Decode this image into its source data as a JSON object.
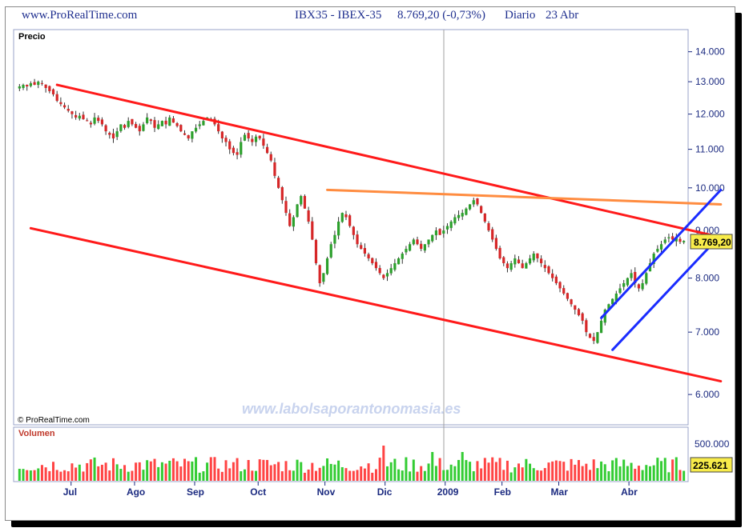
{
  "header": {
    "site": "www.ProRealTime.com",
    "instrument": "IBX35 - IBEX-35",
    "quote": "8.769,20 (-0,73%)",
    "period": "Diario",
    "date": "23 Abr"
  },
  "labels": {
    "price_panel": "Precio",
    "volume_panel": "Volumen",
    "copyright": "© ProRealTime.com",
    "watermark": "www.labolsaporantonomasia.es",
    "last_price": "8.769,20",
    "last_volume": "225.621",
    "volume_tick": "500.000"
  },
  "colors": {
    "candle_up": "#2ca02c",
    "candle_down": "#d62728",
    "channel_red": "#ff1a1a",
    "resistance_orange": "#ff8c40",
    "channel_blue": "#1a2cff",
    "axis_blue": "#1b2a80",
    "vol_up": "#33cc33",
    "vol_down": "#ff4444"
  },
  "chart_data": {
    "type": "candlestick",
    "title": "IBX35 - IBEX-35",
    "y_axis": {
      "scale": "log",
      "ticks": [
        "14.000",
        "13.000",
        "12.000",
        "11.000",
        "10.000",
        "9.000",
        "8.000",
        "7.000",
        "6.000"
      ],
      "tick_values": [
        14000,
        13000,
        12000,
        11000,
        10000,
        9000,
        8000,
        7000,
        6000
      ],
      "ylim": [
        5600,
        14700
      ]
    },
    "x_axis": {
      "ticks": [
        "Jul",
        "Ago",
        "Sep",
        "Oct",
        "Nov",
        "Dic",
        "2009",
        "Feb",
        "Mar",
        "Abr"
      ]
    },
    "price_series": {
      "name": "IBEX-35",
      "points": [
        12850,
        12900,
        12850,
        12950,
        12900,
        13000,
        12950,
        12800,
        12700,
        12600,
        12400,
        12300,
        12200,
        12100,
        12000,
        11900,
        11950,
        11850,
        11800,
        11700,
        11900,
        11800,
        11700,
        11500,
        11400,
        11300,
        11500,
        11700,
        11600,
        11800,
        11700,
        11600,
        11500,
        11700,
        11900,
        11800,
        11600,
        11700,
        11800,
        11700,
        11900,
        11750,
        11650,
        11500,
        11400,
        11300,
        11500,
        11600,
        11700,
        11800,
        11900,
        11850,
        11700,
        11500,
        11300,
        11200,
        11000,
        10900,
        10850,
        11200,
        11400,
        11300,
        11200,
        11350,
        11300,
        11100,
        10900,
        10700,
        10300,
        10000,
        9700,
        9400,
        9100,
        9300,
        9600,
        9800,
        9500,
        9200,
        8800,
        8300,
        7900,
        8100,
        8400,
        8700,
        8900,
        9200,
        9400,
        9300,
        9100,
        8900,
        8700,
        8600,
        8500,
        8400,
        8300,
        8200,
        8100,
        8000,
        8100,
        8200,
        8300,
        8400,
        8500,
        8600,
        8700,
        8800,
        8700,
        8600,
        8700,
        8800,
        8900,
        9000,
        8900,
        9000,
        9100,
        9200,
        9300,
        9350,
        9400,
        9500,
        9600,
        9700,
        9600,
        9400,
        9200,
        9000,
        8800,
        8600,
        8400,
        8300,
        8200,
        8300,
        8400,
        8300,
        8200,
        8300,
        8400,
        8500,
        8400,
        8300,
        8200,
        8100,
        8000,
        7900,
        7800,
        7700,
        7600,
        7500,
        7400,
        7300,
        7200,
        7000,
        6900,
        6850,
        7000,
        7200,
        7400,
        7500,
        7600,
        7700,
        7800,
        7900,
        8000,
        8100,
        7900,
        7800,
        7900,
        8100,
        8300,
        8500,
        8600,
        8700,
        8800,
        8850,
        8800,
        8850,
        8750,
        8770
      ]
    },
    "volume_series": {
      "name": "Volumen",
      "tick": 500000,
      "last": 225621
    },
    "trendlines": [
      {
        "name": "upper-red",
        "color": "#ff1a1a",
        "from": {
          "i": 10,
          "price": 12900
        },
        "to": {
          "i": 186,
          "price": 8850
        }
      },
      {
        "name": "lower-red",
        "color": "#ff1a1a",
        "from": {
          "i": 3,
          "price": 9050
        },
        "to": {
          "i": 186,
          "price": 6200
        }
      },
      {
        "name": "orange-resistance",
        "color": "#ff8c40",
        "from": {
          "i": 82,
          "price": 9950
        },
        "to": {
          "i": 186,
          "price": 9600
        }
      },
      {
        "name": "blue-upper",
        "color": "#1a2cff",
        "from": {
          "i": 155,
          "price": 7250
        },
        "to": {
          "i": 186,
          "price": 9950
        }
      },
      {
        "name": "blue-lower",
        "color": "#1a2cff",
        "from": {
          "i": 158,
          "price": 6700
        },
        "to": {
          "i": 186,
          "price": 8900
        }
      }
    ]
  }
}
